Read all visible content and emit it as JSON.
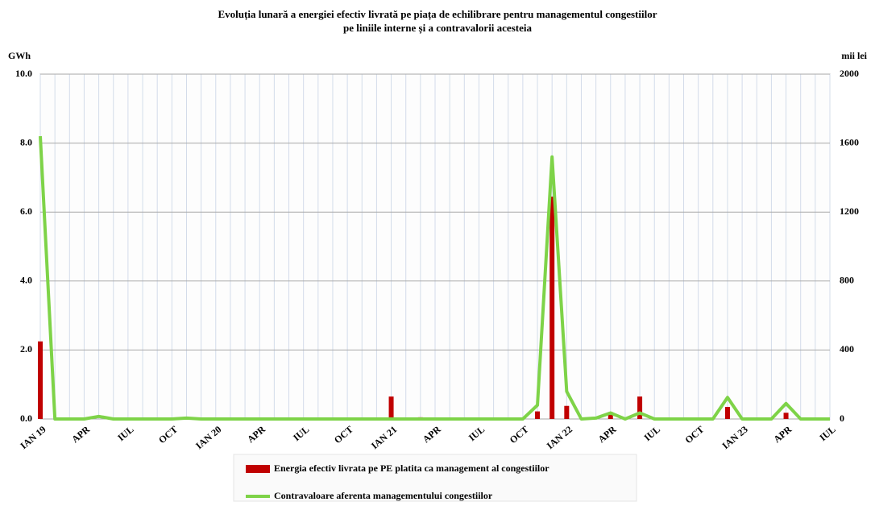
{
  "chart_data": {
    "type": "bar-line",
    "title": "Evoluția lunară a energiei efectiv livrată pe piața de echilibrare pentru managementul congestiilor",
    "subtitle": "pe liniile interne și a contravalorii acesteia",
    "y_label": "GWh",
    "y2_label": "mii lei",
    "categories": [
      "IAN 19",
      null,
      null,
      "APR",
      null,
      null,
      "IUL",
      null,
      null,
      "OCT",
      null,
      null,
      "IAN 20",
      null,
      null,
      "APR",
      null,
      null,
      "IUL",
      null,
      null,
      "OCT",
      null,
      null,
      "IAN 21",
      null,
      null,
      "APR",
      null,
      null,
      "IUL",
      null,
      null,
      "OCT",
      null,
      null,
      "IAN 22",
      null,
      null,
      "APR",
      null,
      null,
      "IUL",
      null,
      null,
      "OCT",
      null,
      null,
      "IAN 23",
      null,
      null,
      "APR",
      null,
      null,
      "IUL"
    ],
    "series": [
      {
        "name": "Energia efectiv livrata pe PE platita ca management al congestiilor",
        "color": "#c00000",
        "kind": "bar",
        "values": [
          2.25,
          0,
          0,
          0,
          0,
          0,
          0,
          0,
          0,
          0,
          0,
          0,
          0,
          0,
          0,
          0,
          0,
          0,
          0,
          0,
          0,
          0,
          0,
          0,
          0.65,
          0,
          0.05,
          0,
          0,
          0,
          0,
          0,
          0,
          0,
          0.22,
          6.45,
          0.38,
          0,
          0,
          0.2,
          0,
          0.65,
          0,
          0,
          0,
          0,
          0,
          0.35,
          0,
          0,
          0,
          0.18,
          0,
          0,
          0
        ]
      },
      {
        "name": "Contravaloare aferenta managementului congestiilor",
        "color": "#7ed348",
        "kind": "line",
        "axis": "y2",
        "values": [
          1640,
          0,
          0,
          0,
          15,
          0,
          0,
          0,
          0,
          0,
          5,
          0,
          0,
          0,
          0,
          0,
          0,
          0,
          0,
          0,
          0,
          0,
          0,
          0,
          0,
          0,
          0,
          0,
          0,
          0,
          0,
          0,
          0,
          0,
          80,
          1520,
          160,
          0,
          5,
          35,
          0,
          35,
          0,
          0,
          0,
          0,
          0,
          125,
          0,
          0,
          0,
          90,
          0,
          0,
          0
        ]
      }
    ],
    "ylim": [
      0,
      10
    ],
    "yticks": [
      {
        "value": 0,
        "label": "0.0"
      },
      {
        "value": 2,
        "label": "2.0"
      },
      {
        "value": 4,
        "label": "4.0"
      },
      {
        "value": 6,
        "label": "6.0"
      },
      {
        "value": 8,
        "label": "8.0"
      },
      {
        "value": 10,
        "label": "10.0"
      }
    ],
    "y2lim": [
      0,
      2000
    ],
    "y2ticks": [
      0,
      400,
      800,
      1200,
      1600,
      2000
    ],
    "grid": true
  }
}
